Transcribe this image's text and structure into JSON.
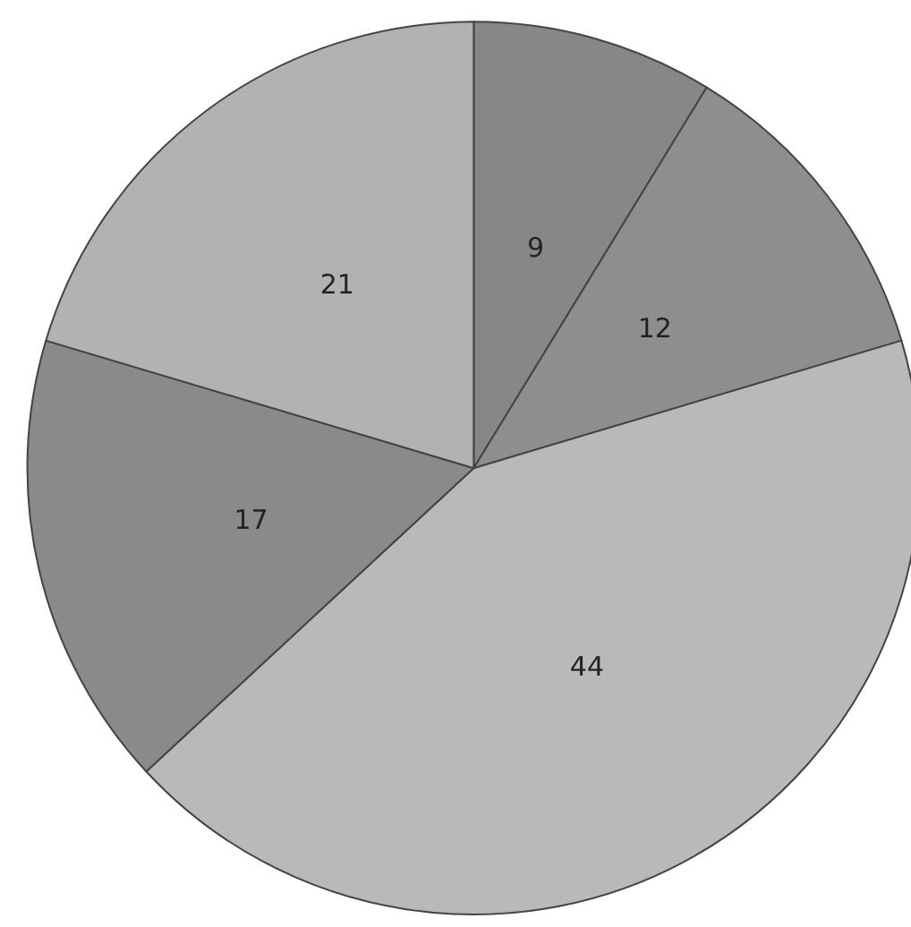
{
  "chart_data": {
    "type": "pie",
    "categories": [
      null,
      null,
      null,
      null,
      null
    ],
    "values": [
      9,
      12,
      44,
      17,
      21
    ],
    "colors": [
      "#878787",
      "#8e8e8e",
      "#b9b9b9",
      "#8a8a8a",
      "#b2b2b2"
    ],
    "data_labels": true
  }
}
